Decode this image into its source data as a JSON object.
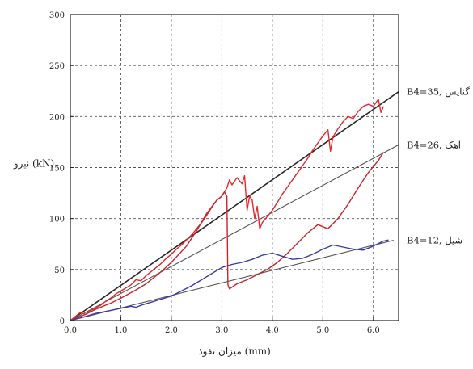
{
  "chart_data": {
    "type": "line",
    "title": "",
    "xlabel": "میزان نفوذ (mm)",
    "ylabel": "نیرو (kN)",
    "xlim": [
      0,
      6.5
    ],
    "ylim": [
      0,
      300
    ],
    "grid": true,
    "grid_style": "dashed",
    "x_ticks": [
      0,
      1,
      2,
      3,
      4,
      5,
      6
    ],
    "x_tick_labels": [
      "0.0",
      "1.0",
      "2.0",
      "3.0",
      "4.0",
      "5.0",
      "6.0"
    ],
    "y_ticks": [
      0,
      50,
      100,
      150,
      200,
      250,
      300
    ],
    "y_tick_labels": [
      "0",
      "50",
      "100",
      "150",
      "200",
      "250",
      "300"
    ],
    "reference_lines": [
      {
        "name": "B4=35, گنایس",
        "slope": 34.5,
        "color": "#2a2a2a",
        "x_end": 6.5
      },
      {
        "name": "B4=26, آهک",
        "slope": 26.5,
        "color": "#555555",
        "x_end": 6.5
      },
      {
        "name": "B4=12, شیل",
        "slope": 12.3,
        "color": "#555555",
        "x_end": 6.4
      }
    ],
    "series": [
      {
        "color": "#e8262b",
        "points": [
          [
            0,
            0
          ],
          [
            0.1,
            4
          ],
          [
            0.2,
            8
          ],
          [
            0.3,
            6
          ],
          [
            0.4,
            10
          ],
          [
            0.5,
            12
          ],
          [
            0.6,
            15
          ],
          [
            0.7,
            19
          ],
          [
            0.8,
            22
          ],
          [
            0.9,
            26
          ],
          [
            1.0,
            29
          ],
          [
            1.1,
            32
          ],
          [
            1.2,
            35
          ],
          [
            1.3,
            40
          ],
          [
            1.4,
            39
          ],
          [
            1.5,
            44
          ],
          [
            1.6,
            48
          ],
          [
            1.7,
            52
          ],
          [
            1.8,
            56
          ],
          [
            1.9,
            61
          ],
          [
            2.0,
            65
          ],
          [
            2.1,
            70
          ],
          [
            2.2,
            74
          ],
          [
            2.3,
            79
          ],
          [
            2.4,
            84
          ],
          [
            2.5,
            90
          ],
          [
            2.6,
            96
          ],
          [
            2.7,
            103
          ],
          [
            2.8,
            111
          ],
          [
            2.9,
            118
          ],
          [
            3.0,
            122
          ],
          [
            3.1,
            130
          ],
          [
            3.15,
            138
          ],
          [
            3.2,
            133
          ],
          [
            3.3,
            140
          ],
          [
            3.4,
            134
          ],
          [
            3.45,
            142
          ],
          [
            3.5,
            108
          ],
          [
            3.55,
            122
          ],
          [
            3.6,
            118
          ],
          [
            3.65,
            100
          ],
          [
            3.7,
            112
          ],
          [
            3.75,
            90
          ],
          [
            3.8,
            96
          ],
          [
            3.9,
            102
          ],
          [
            4.0,
            108
          ],
          [
            4.1,
            116
          ],
          [
            4.2,
            124
          ],
          [
            4.3,
            131
          ],
          [
            4.4,
            138
          ],
          [
            4.5,
            145
          ],
          [
            4.6,
            152
          ],
          [
            4.7,
            159
          ],
          [
            4.8,
            167
          ],
          [
            4.9,
            174
          ],
          [
            5.0,
            181
          ],
          [
            5.1,
            187
          ],
          [
            5.15,
            166
          ],
          [
            5.2,
            180
          ],
          [
            5.3,
            188
          ],
          [
            5.4,
            195
          ],
          [
            5.5,
            200
          ],
          [
            5.6,
            198
          ],
          [
            5.7,
            205
          ],
          [
            5.8,
            210
          ],
          [
            5.9,
            212
          ],
          [
            6.0,
            210
          ],
          [
            6.1,
            217
          ],
          [
            6.15,
            204
          ],
          [
            6.2,
            210
          ]
        ]
      },
      {
        "color": "#c8242a",
        "points": [
          [
            0,
            0
          ],
          [
            0.3,
            6
          ],
          [
            0.5,
            11
          ],
          [
            0.8,
            17
          ],
          [
            1.0,
            22
          ],
          [
            1.3,
            30
          ],
          [
            1.5,
            36
          ],
          [
            1.8,
            48
          ],
          [
            2.0,
            57
          ],
          [
            2.3,
            73
          ],
          [
            2.5,
            88
          ],
          [
            2.7,
            105
          ],
          [
            2.9,
            118
          ],
          [
            3.0,
            122
          ],
          [
            3.05,
            126
          ],
          [
            3.1,
            122
          ],
          [
            3.12,
            35
          ],
          [
            3.15,
            31
          ],
          [
            3.3,
            36
          ],
          [
            3.5,
            40
          ],
          [
            3.7,
            45
          ],
          [
            3.9,
            50
          ],
          [
            4.1,
            57
          ],
          [
            4.3,
            66
          ],
          [
            4.5,
            76
          ],
          [
            4.7,
            86
          ],
          [
            4.9,
            94
          ],
          [
            5.1,
            90
          ],
          [
            5.3,
            100
          ],
          [
            5.5,
            114
          ],
          [
            5.7,
            130
          ],
          [
            5.9,
            145
          ],
          [
            6.1,
            157
          ],
          [
            6.2,
            165
          ]
        ]
      },
      {
        "color": "#3b3ba8",
        "points": [
          [
            0,
            0
          ],
          [
            0.3,
            4
          ],
          [
            0.5,
            7
          ],
          [
            0.8,
            10
          ],
          [
            1.0,
            12
          ],
          [
            1.2,
            14
          ],
          [
            1.3,
            13
          ],
          [
            1.4,
            15
          ],
          [
            1.6,
            18
          ],
          [
            1.8,
            21
          ],
          [
            2.0,
            24
          ],
          [
            2.2,
            29
          ],
          [
            2.4,
            34
          ],
          [
            2.6,
            40
          ],
          [
            2.8,
            46
          ],
          [
            3.0,
            52
          ],
          [
            3.2,
            55
          ],
          [
            3.4,
            57
          ],
          [
            3.6,
            60
          ],
          [
            3.8,
            64
          ],
          [
            4.0,
            66
          ],
          [
            4.2,
            63
          ],
          [
            4.4,
            60
          ],
          [
            4.6,
            61
          ],
          [
            4.8,
            65
          ],
          [
            5.0,
            70
          ],
          [
            5.2,
            74
          ],
          [
            5.4,
            72
          ],
          [
            5.6,
            70
          ],
          [
            5.8,
            69
          ],
          [
            6.0,
            73
          ],
          [
            6.2,
            78
          ],
          [
            6.3,
            79
          ]
        ]
      }
    ]
  }
}
